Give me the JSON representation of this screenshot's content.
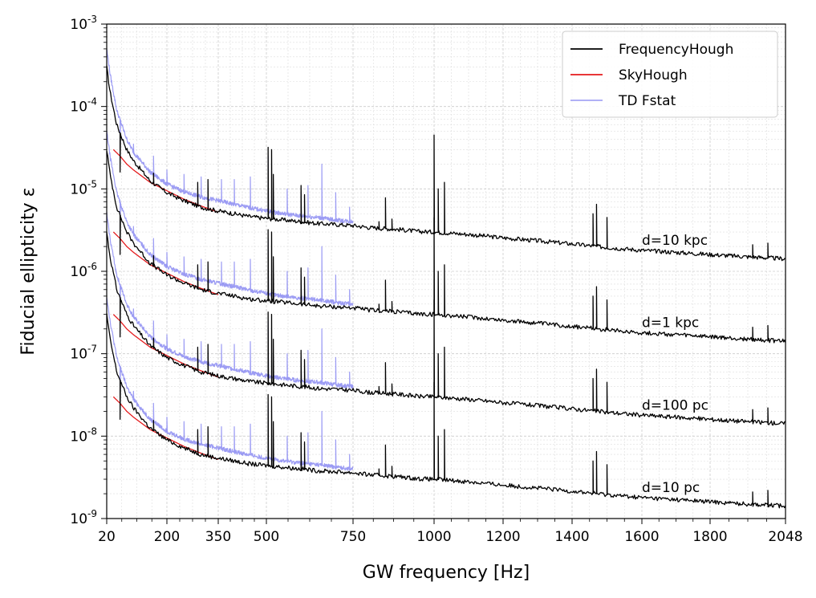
{
  "chart_data": {
    "type": "line",
    "xlabel": "GW frequency [Hz]",
    "ylabel": "Fiducial ellipticity ε",
    "x_scale": "broken-linear",
    "y_scale": "log",
    "xlim": [
      20,
      2048
    ],
    "ylim": [
      1e-09,
      0.001
    ],
    "grid": true,
    "legend_position": "top-right",
    "x_ticks": [
      20,
      200,
      350,
      500,
      750,
      1000,
      1200,
      1400,
      1600,
      1800,
      2048
    ],
    "x_tick_labels": [
      "20",
      "200",
      "350",
      "500",
      "750",
      "1000",
      "1200",
      "1400",
      "1600",
      "1800",
      "2048"
    ],
    "y_ticks": [
      1e-09,
      1e-08,
      1e-07,
      1e-06,
      1e-05,
      0.0001,
      0.001
    ],
    "y_tick_labels": [
      {
        "base": "10",
        "exp": "-9"
      },
      {
        "base": "10",
        "exp": "-8"
      },
      {
        "base": "10",
        "exp": "-7"
      },
      {
        "base": "10",
        "exp": "-6"
      },
      {
        "base": "10",
        "exp": "-5"
      },
      {
        "base": "10",
        "exp": "-4"
      },
      {
        "base": "10",
        "exp": "-3"
      }
    ],
    "legend": [
      {
        "label": "FrequencyHough",
        "color": "#000000"
      },
      {
        "label": "SkyHough",
        "color": "#e41a1c"
      },
      {
        "label": "TD Fstat",
        "color": "#7b7bf0"
      }
    ],
    "distance_annotations": [
      {
        "label": "d=10 kpc",
        "x": 1600,
        "y": 2.4e-06
      },
      {
        "label": "d=1 kpc",
        "x": 1600,
        "y": 2.4e-07
      },
      {
        "label": "d=100 pc",
        "x": 1600,
        "y": 2.4e-08
      },
      {
        "label": "d=10 pc",
        "x": 1600,
        "y": 2.4e-09
      }
    ],
    "distance_scale_factors": [
      1000,
      100,
      10,
      1
    ],
    "series": [
      {
        "name": "FrequencyHough",
        "color": "#000000",
        "x": [
          20,
          30,
          50,
          80,
          100,
          150,
          200,
          250,
          300,
          350,
          400,
          450,
          500,
          550,
          600,
          650,
          700,
          750,
          800,
          850,
          900,
          950,
          1000,
          1050,
          1100,
          1200,
          1300,
          1400,
          1500,
          1600,
          1700,
          1800,
          1900,
          2000,
          2048
        ],
        "y": [
          3e-07,
          1.5e-07,
          6e-08,
          3e-08,
          2.2e-08,
          1.25e-08,
          9e-09,
          7.2e-09,
          6e-09,
          5.4e-09,
          5e-09,
          4.6e-09,
          4.4e-09,
          4.2e-09,
          4e-09,
          3.8e-09,
          3.7e-09,
          3.6e-09,
          3.4e-09,
          3.3e-09,
          3.2e-09,
          3.05e-09,
          3e-09,
          2.9e-09,
          2.8e-09,
          2.55e-09,
          2.35e-09,
          2.15e-09,
          1.95e-09,
          1.8e-09,
          1.7e-09,
          1.6e-09,
          1.52e-09,
          1.45e-09,
          1.42e-09
        ],
        "peaks": [
          {
            "x": 60,
            "y": 1.6e-08
          },
          {
            "x": 160,
            "y": 1.55e-08
          },
          {
            "x": 290,
            "y": 1.2e-08
          },
          {
            "x": 320,
            "y": 1.3e-08
          },
          {
            "x": 505,
            "y": 3.2e-08
          },
          {
            "x": 515,
            "y": 3e-08
          },
          {
            "x": 520,
            "y": 1.5e-08
          },
          {
            "x": 600,
            "y": 1.1e-08
          },
          {
            "x": 610,
            "y": 8.5e-09
          },
          {
            "x": 830,
            "y": 4e-09
          },
          {
            "x": 850,
            "y": 7.8e-09
          },
          {
            "x": 870,
            "y": 4.3e-09
          },
          {
            "x": 1000,
            "y": 4.5e-08
          },
          {
            "x": 1012,
            "y": 1e-08
          },
          {
            "x": 1030,
            "y": 1.2e-08
          },
          {
            "x": 1460,
            "y": 5e-09
          },
          {
            "x": 1470,
            "y": 6.5e-09
          },
          {
            "x": 1500,
            "y": 4.5e-09
          },
          {
            "x": 1940,
            "y": 2.1e-09
          },
          {
            "x": 1990,
            "y": 2.2e-09
          }
        ]
      },
      {
        "name": "SkyHough",
        "color": "#e41a1c",
        "x": [
          40,
          60,
          80,
          100,
          150,
          200,
          250,
          300,
          350
        ],
        "y": [
          3e-08,
          2.5e-08,
          2e-08,
          1.7e-08,
          1.2e-08,
          9.5e-09,
          7.5e-09,
          6.2e-09,
          5.2e-09
        ]
      },
      {
        "name": "TD Fstat",
        "color": "#7b7bf0",
        "x": [
          20,
          30,
          50,
          80,
          100,
          150,
          200,
          250,
          300,
          350,
          400,
          450,
          500,
          550,
          600,
          650,
          700,
          750
        ],
        "y": [
          5e-07,
          2.5e-07,
          9e-08,
          4e-08,
          2.8e-08,
          1.6e-08,
          1.15e-08,
          9.2e-09,
          8e-09,
          7.2e-09,
          6.5e-09,
          5.9e-09,
          5.4e-09,
          5e-09,
          4.7e-09,
          4.5e-09,
          4.2e-09,
          4e-09
        ],
        "peaks": [
          {
            "x": 60,
            "y": 3e-08
          },
          {
            "x": 100,
            "y": 3.5e-08
          },
          {
            "x": 160,
            "y": 2.5e-08
          },
          {
            "x": 200,
            "y": 1.7e-08
          },
          {
            "x": 250,
            "y": 1.5e-08
          },
          {
            "x": 300,
            "y": 1.4e-08
          },
          {
            "x": 360,
            "y": 1.3e-08
          },
          {
            "x": 400,
            "y": 1.3e-08
          },
          {
            "x": 450,
            "y": 1.4e-08
          },
          {
            "x": 505,
            "y": 2.5e-08
          },
          {
            "x": 560,
            "y": 1e-08
          },
          {
            "x": 600,
            "y": 9e-09
          },
          {
            "x": 620,
            "y": 1.1e-08
          },
          {
            "x": 660,
            "y": 2e-08
          },
          {
            "x": 700,
            "y": 9e-09
          },
          {
            "x": 740,
            "y": 6e-09
          }
        ]
      }
    ]
  }
}
